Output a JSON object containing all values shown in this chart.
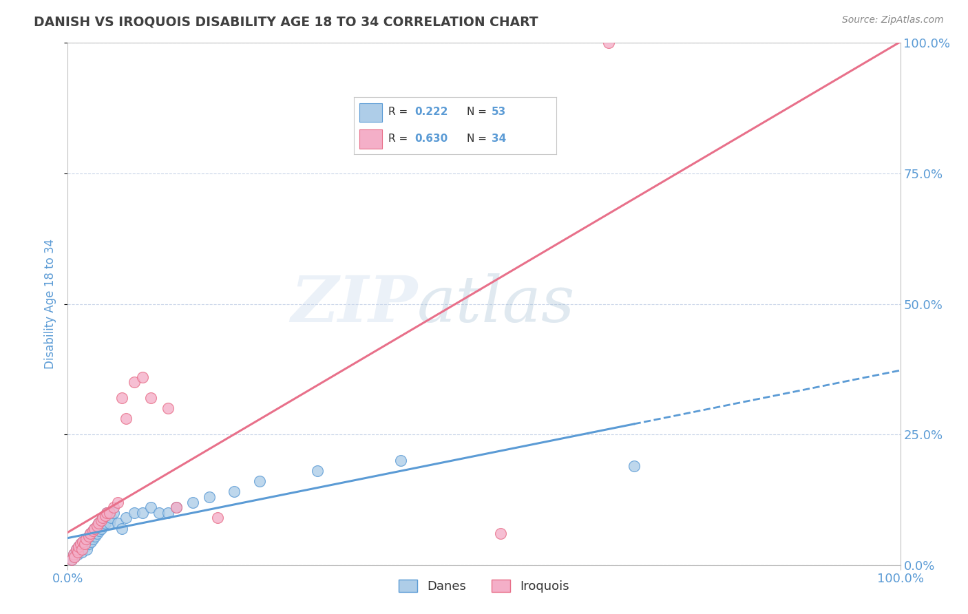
{
  "title": "DANISH VS IROQUOIS DISABILITY AGE 18 TO 34 CORRELATION CHART",
  "source_text": "Source: ZipAtlas.com",
  "ylabel": "Disability Age 18 to 34",
  "xlim": [
    0.0,
    1.0
  ],
  "ylim": [
    0.0,
    1.0
  ],
  "x_tick_labels": [
    "0.0%",
    "100.0%"
  ],
  "y_tick_labels": [
    "0.0%",
    "25.0%",
    "50.0%",
    "75.0%",
    "100.0%"
  ],
  "y_ticks": [
    0.0,
    0.25,
    0.5,
    0.75,
    1.0
  ],
  "r_danes": 0.222,
  "r_iroquois": 0.63,
  "n_danes": 53,
  "n_iroquois": 34,
  "color_danes": "#aecde8",
  "color_iroquois": "#f4afc8",
  "color_danes_line": "#5b9bd5",
  "color_iroquois_line": "#e8708a",
  "color_danes_edge": "#5b9bd5",
  "color_iroquois_edge": "#e8708a",
  "danes_x": [
    0.005,
    0.007,
    0.008,
    0.01,
    0.01,
    0.012,
    0.013,
    0.015,
    0.015,
    0.017,
    0.018,
    0.02,
    0.02,
    0.022,
    0.023,
    0.025,
    0.025,
    0.027,
    0.028,
    0.03,
    0.03,
    0.032,
    0.033,
    0.035,
    0.035,
    0.037,
    0.038,
    0.04,
    0.04,
    0.042,
    0.043,
    0.045,
    0.045,
    0.047,
    0.05,
    0.052,
    0.055,
    0.06,
    0.065,
    0.07,
    0.08,
    0.09,
    0.1,
    0.11,
    0.12,
    0.13,
    0.15,
    0.17,
    0.2,
    0.23,
    0.3,
    0.4,
    0.68
  ],
  "danes_y": [
    0.01,
    0.02,
    0.015,
    0.03,
    0.025,
    0.02,
    0.035,
    0.03,
    0.04,
    0.025,
    0.045,
    0.04,
    0.035,
    0.05,
    0.03,
    0.055,
    0.04,
    0.06,
    0.045,
    0.065,
    0.05,
    0.07,
    0.055,
    0.075,
    0.06,
    0.08,
    0.065,
    0.085,
    0.07,
    0.09,
    0.075,
    0.095,
    0.08,
    0.1,
    0.08,
    0.09,
    0.1,
    0.08,
    0.07,
    0.09,
    0.1,
    0.1,
    0.11,
    0.1,
    0.1,
    0.11,
    0.12,
    0.13,
    0.14,
    0.16,
    0.18,
    0.2,
    0.19
  ],
  "iroquois_x": [
    0.005,
    0.007,
    0.008,
    0.01,
    0.012,
    0.013,
    0.015,
    0.017,
    0.018,
    0.02,
    0.022,
    0.025,
    0.027,
    0.03,
    0.032,
    0.035,
    0.037,
    0.04,
    0.042,
    0.045,
    0.047,
    0.05,
    0.055,
    0.06,
    0.065,
    0.07,
    0.08,
    0.09,
    0.1,
    0.12,
    0.13,
    0.18,
    0.52,
    0.65
  ],
  "iroquois_y": [
    0.01,
    0.02,
    0.015,
    0.03,
    0.025,
    0.035,
    0.04,
    0.03,
    0.045,
    0.04,
    0.05,
    0.055,
    0.06,
    0.065,
    0.07,
    0.075,
    0.08,
    0.085,
    0.09,
    0.095,
    0.1,
    0.1,
    0.11,
    0.12,
    0.32,
    0.28,
    0.35,
    0.36,
    0.32,
    0.3,
    0.11,
    0.09,
    0.06,
    1.0
  ],
  "watermark_zip": "ZIP",
  "watermark_atlas": "atlas",
  "grid_color": "#c8d4e8",
  "bg_color": "#ffffff",
  "title_color": "#404040",
  "tick_color": "#5b9bd5",
  "ylabel_color": "#5b9bd5",
  "source_color": "#888888"
}
